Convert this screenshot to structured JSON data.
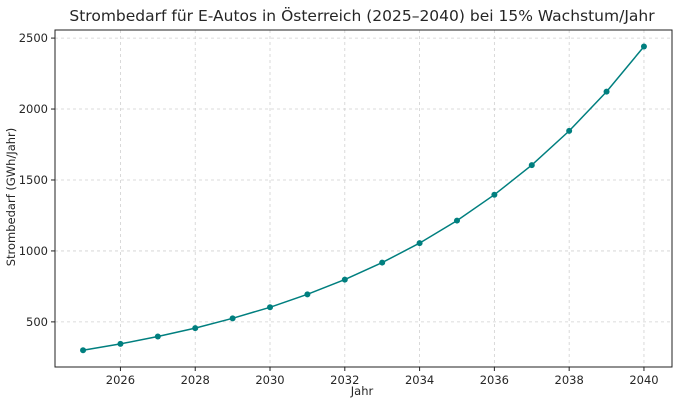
{
  "chart_data": {
    "type": "line",
    "title": "Strombedarf für E-Autos in Österreich (2025–2040) bei 15% Wachstum/Jahr",
    "xlabel": "Jahr",
    "ylabel": "Strombedarf (GWh/Jahr)",
    "xlim": [
      2024.25,
      2040.75
    ],
    "ylim": [
      182,
      2557
    ],
    "xticks": [
      2026,
      2028,
      2030,
      2032,
      2034,
      2036,
      2038,
      2040
    ],
    "yticks": [
      500,
      1000,
      1500,
      2000,
      2500
    ],
    "grid": true,
    "color": "#007f7f",
    "x": [
      2025,
      2026,
      2027,
      2028,
      2029,
      2030,
      2031,
      2032,
      2033,
      2034,
      2035,
      2036,
      2037,
      2038,
      2039,
      2040
    ],
    "y": [
      300,
      345,
      397,
      456,
      525,
      603,
      694,
      798,
      918,
      1055,
      1214,
      1396,
      1605,
      1846,
      2123,
      2441
    ]
  }
}
